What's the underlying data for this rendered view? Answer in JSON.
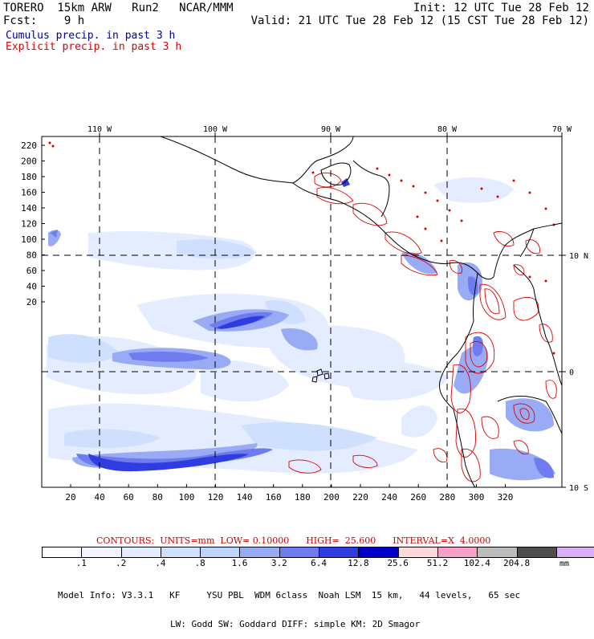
{
  "header": {
    "left_line1": "TORERO  15km ARW   Run2   NCAR/MMM",
    "left_line2": "Fcst:    9 h",
    "right_line1": "Init: 12 UTC Tue 28 Feb 12",
    "right_line2": "Valid: 21 UTC Tue 28 Feb 12 (15 CST Tue 28 Feb 12)",
    "cumulus_label": "Cumulus precip. in past 3 h",
    "explicit_label": "Explicit precip. in past 3 h",
    "cumulus_color": "#000099",
    "explicit_color": "#dd0000"
  },
  "map": {
    "lon_labels": [
      "110 W",
      "100 W",
      "90 W",
      "80 W",
      "70 W"
    ],
    "lat_labels": [
      "10 N",
      "0",
      "10 S"
    ],
    "y_ticks": [
      "220",
      "200",
      "180",
      "160",
      "140",
      "120",
      "100",
      "80",
      "60",
      "40",
      "20"
    ],
    "x_ticks": [
      "20",
      "40",
      "60",
      "80",
      "100",
      "120",
      "140",
      "160",
      "180",
      "200",
      "220",
      "240",
      "260",
      "280",
      "300",
      "320"
    ]
  },
  "contours_text": "CONTOURS:  UNITS=mm  LOW= 0.10000      HIGH=  25.600      INTERVAL=X  4.0000",
  "legend": {
    "colors": [
      "#ffffff",
      "#f2f5ff",
      "#e3ecff",
      "#cfe0ff",
      "#bcd4ff",
      "#9aabf5",
      "#6f7cf0",
      "#2f3de0",
      "#0000c8",
      "#ffd8d8",
      "#f7a0c8",
      "#bdbdbd",
      "#4d4d4d",
      "#d8b0f5"
    ],
    "labels": [
      ".1",
      ".2",
      ".4",
      ".8",
      "1.6",
      "3.2",
      "6.4",
      "12.8",
      "25.6",
      "51.2",
      "102.4",
      "204.8"
    ],
    "unit": "mm"
  },
  "model_info": {
    "line1": "Model Info: V3.3.1   KF     YSU PBL  WDM 6class  Noah LSM  15 km,   44 levels,   65 sec",
    "line2": "LW: Godd SW: Goddard DIFF: simple KM: 2D Smagor"
  }
}
